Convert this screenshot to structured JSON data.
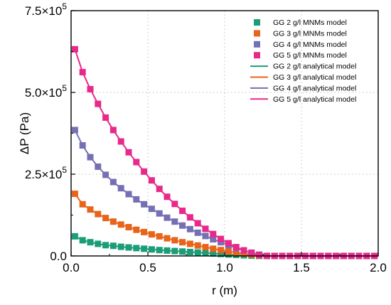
{
  "chart_data": {
    "type": "line",
    "title": "",
    "xlabel": "r (m)",
    "ylabel": "ΔP (Pa)",
    "xlim": [
      0.0,
      2.0
    ],
    "ylim": [
      0,
      750000
    ],
    "grid": true,
    "legend_position": "top-right",
    "x_ticks": [
      0.0,
      0.5,
      1.0,
      1.5,
      2.0
    ],
    "x_tick_labels": [
      "0.0",
      "0.5",
      "1.0",
      "1.5",
      "2.0"
    ],
    "y_ticks": [
      0,
      250000,
      500000,
      750000
    ],
    "y_tick_labels": [
      {
        "base": "0.0",
        "exp": ""
      },
      {
        "base": "2.5×10",
        "exp": "5"
      },
      {
        "base": "5.0×10",
        "exp": "5"
      },
      {
        "base": "7.5×10",
        "exp": "5"
      }
    ],
    "x": [
      0.025,
      0.075,
      0.125,
      0.175,
      0.225,
      0.275,
      0.325,
      0.375,
      0.425,
      0.475,
      0.525,
      0.575,
      0.625,
      0.675,
      0.725,
      0.775,
      0.825,
      0.875,
      0.925,
      0.975,
      1.025,
      1.075,
      1.125,
      1.175,
      1.225,
      1.275,
      1.325,
      1.375,
      1.425,
      1.475,
      1.525,
      1.575,
      1.625,
      1.675,
      1.725,
      1.775,
      1.825,
      1.875,
      1.925,
      1.975
    ],
    "colors": {
      "gg2": "#1a9e77",
      "gg3": "#e8641b",
      "gg4": "#7570b3",
      "gg5": "#e7298a"
    },
    "series": [
      {
        "name": "GG 2 g/l MNMs model",
        "analytical_name": "GG 2 g/l analytical model",
        "color_key": "gg2",
        "zero_radius": 1.25,
        "values": [
          60000,
          48000,
          42000,
          37000,
          33000,
          31000,
          28000,
          26000,
          24000,
          22000,
          20000,
          18000,
          16500,
          15000,
          13500,
          12000,
          10500,
          9000,
          7500,
          6000,
          4500,
          3200,
          2000,
          1000,
          200,
          0,
          0,
          0,
          0,
          0,
          0,
          0,
          0,
          0,
          0,
          0,
          0,
          0,
          0,
          0
        ]
      },
      {
        "name": "GG 3 g/l MNMs model",
        "analytical_name": "GG 3 g/l analytical model",
        "color_key": "gg3",
        "zero_radius": 1.27,
        "values": [
          190000,
          158000,
          142000,
          128000,
          116000,
          105000,
          96000,
          88000,
          80000,
          73000,
          66000,
          60000,
          54000,
          48000,
          42000,
          37000,
          32000,
          27000,
          22000,
          18000,
          14000,
          10000,
          7000,
          4000,
          1500,
          0,
          0,
          0,
          0,
          0,
          0,
          0,
          0,
          0,
          0,
          0,
          0,
          0,
          0,
          0
        ]
      },
      {
        "name": "GG 4 g/l MNMs model",
        "analytical_name": "GG 4 g/l analytical model",
        "color_key": "gg4",
        "zero_radius": 1.27,
        "values": [
          385000,
          338000,
          302000,
          273000,
          248000,
          226000,
          207000,
          189000,
          173000,
          158000,
          144000,
          130000,
          117000,
          105000,
          93000,
          82000,
          71000,
          61000,
          51000,
          42000,
          33000,
          24000,
          17000,
          10000,
          4000,
          0,
          0,
          0,
          0,
          0,
          0,
          0,
          0,
          0,
          0,
          0,
          0,
          0,
          0,
          0
        ]
      },
      {
        "name": "GG 5 g/l MNMs model",
        "analytical_name": "GG 5 g/l analytical model",
        "color_key": "gg5",
        "zero_radius": 1.28,
        "values": [
          632000,
          562000,
          510000,
          465000,
          423000,
          385000,
          350000,
          317000,
          287000,
          258000,
          231000,
          205000,
          181000,
          159000,
          138000,
          118000,
          100000,
          83000,
          67000,
          52000,
          39000,
          27000,
          17000,
          9000,
          3000,
          0,
          0,
          0,
          0,
          0,
          0,
          0,
          0,
          0,
          0,
          0,
          0,
          0,
          0,
          0
        ]
      }
    ]
  }
}
